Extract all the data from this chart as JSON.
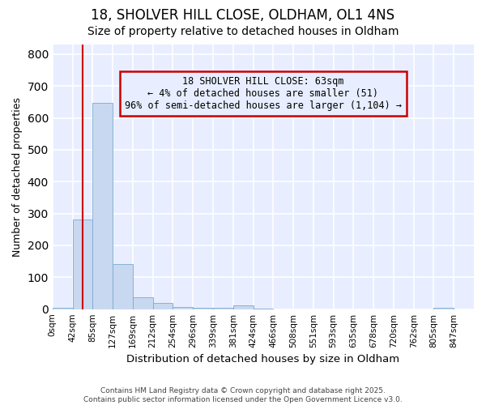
{
  "title": "18, SHOLVER HILL CLOSE, OLDHAM, OL1 4NS",
  "subtitle": "Size of property relative to detached houses in Oldham",
  "xlabel": "Distribution of detached houses by size in Oldham",
  "ylabel": "Number of detached properties",
  "bar_color": "#c8d8f0",
  "bar_edge_color": "#7aaad0",
  "categories": [
    "0sqm",
    "42sqm",
    "85sqm",
    "127sqm",
    "169sqm",
    "212sqm",
    "254sqm",
    "296sqm",
    "339sqm",
    "381sqm",
    "424sqm",
    "466sqm",
    "508sqm",
    "551sqm",
    "593sqm",
    "635sqm",
    "678sqm",
    "720sqm",
    "762sqm",
    "805sqm",
    "847sqm"
  ],
  "values": [
    5,
    280,
    648,
    142,
    37,
    20,
    8,
    5,
    3,
    13,
    1,
    0,
    0,
    0,
    0,
    0,
    0,
    0,
    0,
    4,
    0
  ],
  "ylim": [
    0,
    830
  ],
  "yticks": [
    0,
    100,
    200,
    300,
    400,
    500,
    600,
    700,
    800
  ],
  "annotation_text": "18 SHOLVER HILL CLOSE: 63sqm\n← 4% of detached houses are smaller (51)\n96% of semi-detached houses are larger (1,104) →",
  "annotation_box_color": "#cc0000",
  "background_color": "#ffffff",
  "plot_bg_color": "#e8eeff",
  "grid_color": "#ffffff",
  "footer_text": "Contains HM Land Registry data © Crown copyright and database right 2025.\nContains public sector information licensed under the Open Government Licence v3.0.",
  "property_line_bin": 1.5,
  "title_fontsize": 12,
  "subtitle_fontsize": 10
}
